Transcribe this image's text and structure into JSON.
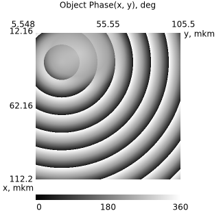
{
  "chart_data": {
    "type": "image",
    "title": "Object Phase(x, y), deg",
    "xlabel": "y, mkm",
    "ylabel": "x, mkm",
    "xlim": [
      5.548,
      105.5
    ],
    "xticks": [
      5.548,
      55.55,
      105.5
    ],
    "ylim": [
      12.16,
      112.2
    ],
    "yticks": [
      12.16,
      62.16,
      112.2
    ],
    "clim": [
      0,
      360
    ],
    "cticks": [
      0,
      180,
      360
    ]
  }
}
